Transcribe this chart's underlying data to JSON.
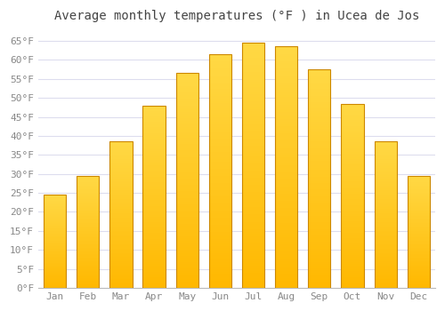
{
  "title": "Average monthly temperatures (°F ) in Ucea de Jos",
  "months": [
    "Jan",
    "Feb",
    "Mar",
    "Apr",
    "May",
    "Jun",
    "Jul",
    "Aug",
    "Sep",
    "Oct",
    "Nov",
    "Dec"
  ],
  "values": [
    24.5,
    29.5,
    38.5,
    48.0,
    56.5,
    61.5,
    64.5,
    63.5,
    57.5,
    48.5,
    38.5,
    29.5
  ],
  "bar_color_bottom": "#FFB800",
  "bar_color_top": "#FFCC44",
  "bar_edge_color": "#CC8800",
  "ylim": [
    0,
    68
  ],
  "yticks": [
    0,
    5,
    10,
    15,
    20,
    25,
    30,
    35,
    40,
    45,
    50,
    55,
    60,
    65
  ],
  "ytick_labels": [
    "0°F",
    "5°F",
    "10°F",
    "15°F",
    "20°F",
    "25°F",
    "30°F",
    "35°F",
    "40°F",
    "45°F",
    "50°F",
    "55°F",
    "60°F",
    "65°F"
  ],
  "figure_bg": "#FFFFFF",
  "axes_bg": "#FFFFFF",
  "grid_color": "#DDDDEE",
  "title_fontsize": 10,
  "tick_fontsize": 8,
  "font_color": "#888888",
  "title_color": "#444444"
}
